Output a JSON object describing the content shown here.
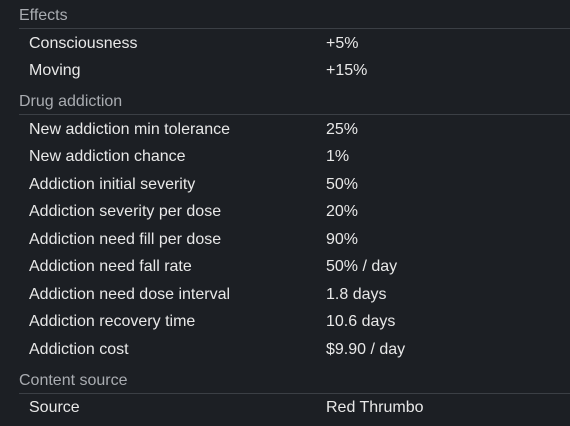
{
  "sections": [
    {
      "title": "Effects",
      "rows": [
        {
          "label": "Consciousness",
          "value": "+5%"
        },
        {
          "label": "Moving",
          "value": "+15%"
        }
      ]
    },
    {
      "title": "Drug addiction",
      "rows": [
        {
          "label": "New addiction min tolerance",
          "value": "25%"
        },
        {
          "label": "New addiction chance",
          "value": "1%"
        },
        {
          "label": "Addiction initial severity",
          "value": "50%"
        },
        {
          "label": "Addiction severity per dose",
          "value": "20%"
        },
        {
          "label": "Addiction need fill per dose",
          "value": "90%"
        },
        {
          "label": "Addiction need fall rate",
          "value": "50% / day"
        },
        {
          "label": "Addiction need dose interval",
          "value": "1.8 days"
        },
        {
          "label": "Addiction recovery time",
          "value": "10.6 days"
        },
        {
          "label": "Addiction cost",
          "value": "$9.90 / day"
        }
      ]
    },
    {
      "title": "Content source",
      "rows": [
        {
          "label": "Source",
          "value": "Red Thrumbo"
        }
      ]
    }
  ]
}
